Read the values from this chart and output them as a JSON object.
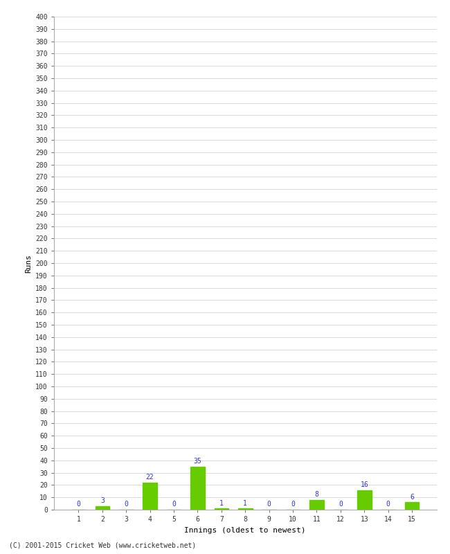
{
  "innings": [
    1,
    2,
    3,
    4,
    5,
    6,
    7,
    8,
    9,
    10,
    11,
    12,
    13,
    14,
    15
  ],
  "runs": [
    0,
    3,
    0,
    22,
    0,
    35,
    1,
    1,
    0,
    0,
    8,
    0,
    16,
    0,
    6
  ],
  "bar_color": "#66cc00",
  "label_color": "#3333cc",
  "ylabel": "Runs",
  "xlabel": "Innings (oldest to newest)",
  "footer": "(C) 2001-2015 Cricket Web (www.cricketweb.net)",
  "ylim": [
    0,
    400
  ],
  "ytick_step": 10,
  "background_color": "#ffffff",
  "grid_color": "#cccccc",
  "spine_color": "#aaaaaa"
}
